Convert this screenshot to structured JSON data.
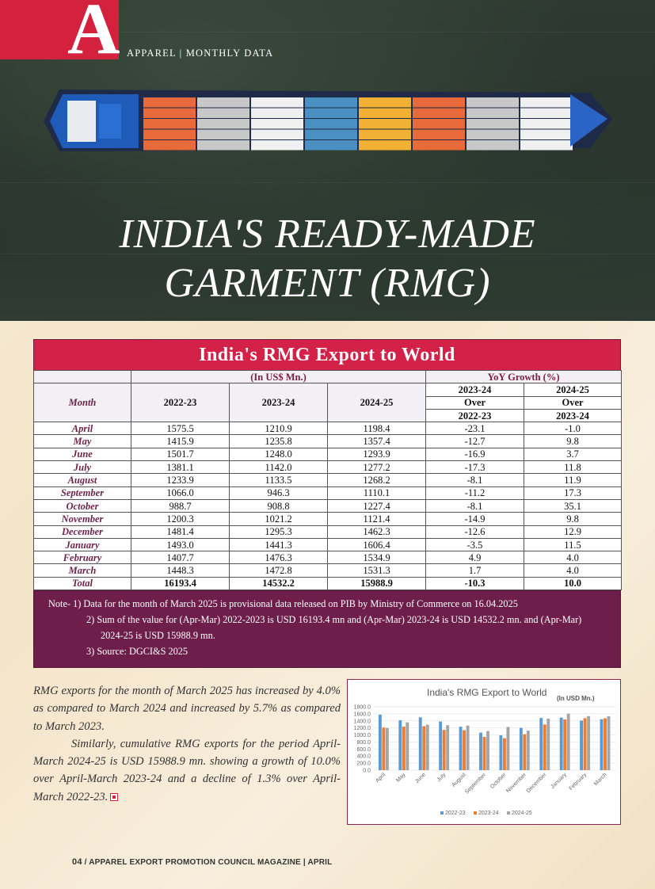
{
  "header": {
    "section_label": "APPAREL | MONTHLY DATA",
    "title_line1": "INDIA'S READY-MADE",
    "title_line2": "GARMENT (RMG)",
    "accent_color": "#d4213e"
  },
  "table": {
    "title": "India's RMG Export to World",
    "unit_header": "(In US$ Mn.)",
    "growth_header": "YoY Growth (%)",
    "month_header": "Month",
    "year_headers": [
      "2022-23",
      "2023-24",
      "2024-25"
    ],
    "growth_col1": {
      "top": "2023-24",
      "mid": "Over",
      "bottom": "2022-23"
    },
    "growth_col2": {
      "top": "2024-25",
      "mid": "Over",
      "bottom": "2023-24"
    },
    "rows": [
      {
        "month": "April",
        "y1": "1575.5",
        "y2": "1210.9",
        "y3": "1198.4",
        "g1": "-23.1",
        "g2": "-1.0"
      },
      {
        "month": "May",
        "y1": "1415.9",
        "y2": "1235.8",
        "y3": "1357.4",
        "g1": "-12.7",
        "g2": "9.8"
      },
      {
        "month": "June",
        "y1": "1501.7",
        "y2": "1248.0",
        "y3": "1293.9",
        "g1": "-16.9",
        "g2": "3.7"
      },
      {
        "month": "July",
        "y1": "1381.1",
        "y2": "1142.0",
        "y3": "1277.2",
        "g1": "-17.3",
        "g2": "11.8"
      },
      {
        "month": "August",
        "y1": "1233.9",
        "y2": "1133.5",
        "y3": "1268.2",
        "g1": "-8.1",
        "g2": "11.9"
      },
      {
        "month": "September",
        "y1": "1066.0",
        "y2": "946.3",
        "y3": "1110.1",
        "g1": "-11.2",
        "g2": "17.3"
      },
      {
        "month": "October",
        "y1": "988.7",
        "y2": "908.8",
        "y3": "1227.4",
        "g1": "-8.1",
        "g2": "35.1"
      },
      {
        "month": "November",
        "y1": "1200.3",
        "y2": "1021.2",
        "y3": "1121.4",
        "g1": "-14.9",
        "g2": "9.8"
      },
      {
        "month": "December",
        "y1": "1481.4",
        "y2": "1295.3",
        "y3": "1462.3",
        "g1": "-12.6",
        "g2": "12.9"
      },
      {
        "month": "January",
        "y1": "1493.0",
        "y2": "1441.3",
        "y3": "1606.4",
        "g1": "-3.5",
        "g2": "11.5"
      },
      {
        "month": "February",
        "y1": "1407.7",
        "y2": "1476.3",
        "y3": "1534.9",
        "g1": "4.9",
        "g2": "4.0"
      },
      {
        "month": "March",
        "y1": "1448.3",
        "y2": "1472.8",
        "y3": "1531.3",
        "g1": "1.7",
        "g2": "4.0"
      }
    ],
    "total": {
      "month": "Total",
      "y1": "16193.4",
      "y2": "14532.2",
      "y3": "15988.9",
      "g1": "-10.3",
      "g2": "10.0"
    },
    "notes": {
      "n1": "Note- 1) Data for the month of March 2025 is provisional data released on PIB by Ministry of Commerce on 16.04.2025",
      "n2a": "2) Sum of the value for (Apr-Mar) 2022-2023 is USD 16193.4 mn and (Apr-Mar) 2023-24 is USD 14532.2 mn. and (Apr-Mar)",
      "n2b": "2024-25 is USD 15988.9 mn.",
      "n3": "3) Source: DGCI&S 2025"
    }
  },
  "body": {
    "para1": "RMG exports for the month of March 2025 has increased by 4.0% as compared to March 2024 and increased by 5.7% as compared to March 2023.",
    "para2": "Similarly, cumulative RMG exports for the period April- March 2024-25 is USD 15988.9 mn. showing a growth of 10.0% over April-March 2023-24 and a decline of 1.3% over April- March 2022-23."
  },
  "chart_data": {
    "type": "bar",
    "title": "India's RMG Export to World",
    "subtitle": "(In USD Mn.)",
    "categories": [
      "April",
      "May",
      "June",
      "July",
      "August",
      "September",
      "October",
      "November",
      "December",
      "January",
      "February",
      "March"
    ],
    "series": [
      {
        "name": "2022-23",
        "color": "#5b9bd5",
        "values": [
          1575.5,
          1415.9,
          1501.7,
          1381.1,
          1233.9,
          1066.0,
          988.7,
          1200.3,
          1481.4,
          1493.0,
          1407.7,
          1448.3
        ]
      },
      {
        "name": "2023-24",
        "color": "#ed7d31",
        "values": [
          1210.9,
          1235.8,
          1248.0,
          1142.0,
          1133.5,
          946.3,
          908.8,
          1021.2,
          1295.3,
          1441.3,
          1476.3,
          1472.8
        ]
      },
      {
        "name": "2024-25",
        "color": "#a5a5a5",
        "values": [
          1198.4,
          1357.4,
          1293.9,
          1277.2,
          1268.2,
          1110.1,
          1227.4,
          1121.4,
          1462.3,
          1606.4,
          1534.9,
          1531.3
        ]
      }
    ],
    "yticks": [
      "1800.0",
      "1600.0",
      "1400.0",
      "1200.0",
      "1000.0",
      "800.0",
      "600.0",
      "400.0",
      "200.0",
      "0.0"
    ],
    "ylim": [
      0,
      1800
    ],
    "grid": true,
    "legend": "bottom"
  },
  "footer": {
    "page": "04",
    "text": "/ APPAREL EXPORT PROMOTION COUNCIL MAGAZINE | APRIL"
  }
}
